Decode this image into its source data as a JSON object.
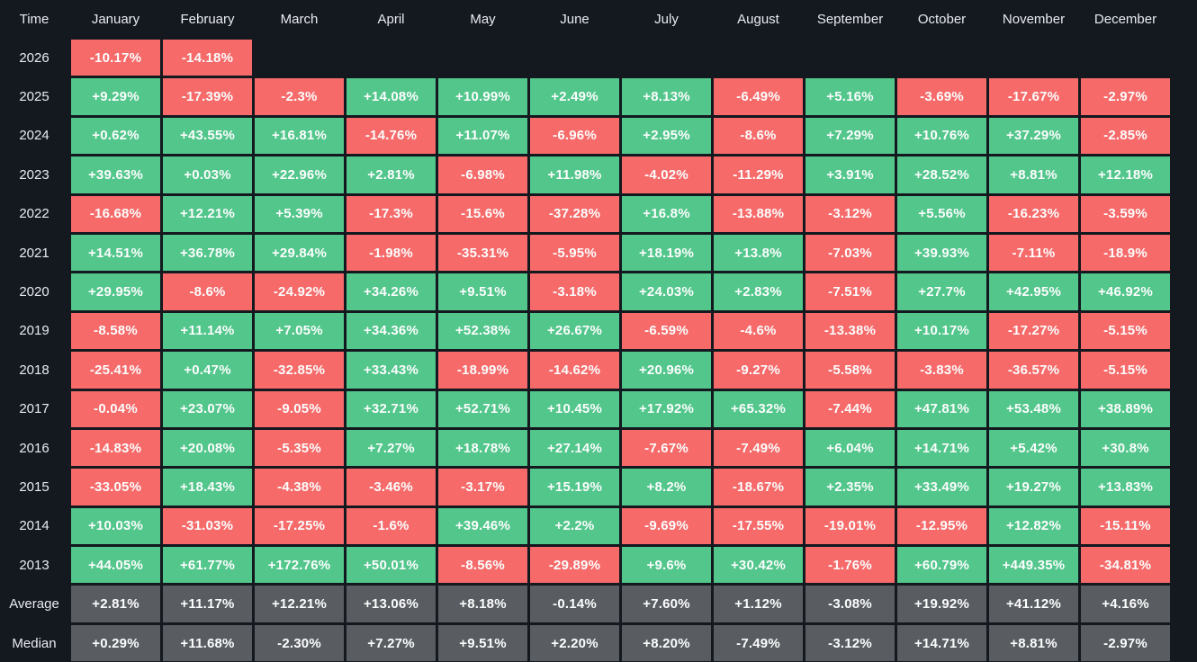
{
  "colors": {
    "background": "#14181f",
    "positive": "#52c68b",
    "negative": "#f66a6a",
    "summary": "#595d62",
    "cell_text": "#fcfdfd",
    "label_text": "#e9edf2"
  },
  "table": {
    "corner_label": "Time"
  },
  "chart_data": {
    "type": "heatmap",
    "title": "",
    "row_header": "Time",
    "columns": [
      "January",
      "February",
      "March",
      "April",
      "May",
      "June",
      "July",
      "August",
      "September",
      "October",
      "November",
      "December"
    ],
    "color_coding": {
      "positive": "green",
      "negative": "red",
      "summary_rows": "gray"
    },
    "legend_position": "none",
    "rows": [
      {
        "label": "2026",
        "kind": "year",
        "display": [
          "-10.17%",
          "-14.18%",
          "",
          "",
          "",
          "",
          "",
          "",
          "",
          "",
          "",
          ""
        ],
        "values": [
          -10.17,
          -14.18,
          null,
          null,
          null,
          null,
          null,
          null,
          null,
          null,
          null,
          null
        ]
      },
      {
        "label": "2025",
        "kind": "year",
        "display": [
          "+9.29%",
          "-17.39%",
          "-2.3%",
          "+14.08%",
          "+10.99%",
          "+2.49%",
          "+8.13%",
          "-6.49%",
          "+5.16%",
          "-3.69%",
          "-17.67%",
          "-2.97%"
        ],
        "values": [
          9.29,
          -17.39,
          -2.3,
          14.08,
          10.99,
          2.49,
          8.13,
          -6.49,
          5.16,
          -3.69,
          -17.67,
          -2.97
        ]
      },
      {
        "label": "2024",
        "kind": "year",
        "display": [
          "+0.62%",
          "+43.55%",
          "+16.81%",
          "-14.76%",
          "+11.07%",
          "-6.96%",
          "+2.95%",
          "-8.6%",
          "+7.29%",
          "+10.76%",
          "+37.29%",
          "-2.85%"
        ],
        "values": [
          0.62,
          43.55,
          16.81,
          -14.76,
          11.07,
          -6.96,
          2.95,
          -8.6,
          7.29,
          10.76,
          37.29,
          -2.85
        ]
      },
      {
        "label": "2023",
        "kind": "year",
        "display": [
          "+39.63%",
          "+0.03%",
          "+22.96%",
          "+2.81%",
          "-6.98%",
          "+11.98%",
          "-4.02%",
          "-11.29%",
          "+3.91%",
          "+28.52%",
          "+8.81%",
          "+12.18%"
        ],
        "values": [
          39.63,
          0.03,
          22.96,
          2.81,
          -6.98,
          11.98,
          -4.02,
          -11.29,
          3.91,
          28.52,
          8.81,
          12.18
        ]
      },
      {
        "label": "2022",
        "kind": "year",
        "display": [
          "-16.68%",
          "+12.21%",
          "+5.39%",
          "-17.3%",
          "-15.6%",
          "-37.28%",
          "+16.8%",
          "-13.88%",
          "-3.12%",
          "+5.56%",
          "-16.23%",
          "-3.59%"
        ],
        "values": [
          -16.68,
          12.21,
          5.39,
          -17.3,
          -15.6,
          -37.28,
          16.8,
          -13.88,
          -3.12,
          5.56,
          -16.23,
          -3.59
        ]
      },
      {
        "label": "2021",
        "kind": "year",
        "display": [
          "+14.51%",
          "+36.78%",
          "+29.84%",
          "-1.98%",
          "-35.31%",
          "-5.95%",
          "+18.19%",
          "+13.8%",
          "-7.03%",
          "+39.93%",
          "-7.11%",
          "-18.9%"
        ],
        "values": [
          14.51,
          36.78,
          29.84,
          -1.98,
          -35.31,
          -5.95,
          18.19,
          13.8,
          -7.03,
          39.93,
          -7.11,
          -18.9
        ]
      },
      {
        "label": "2020",
        "kind": "year",
        "display": [
          "+29.95%",
          "-8.6%",
          "-24.92%",
          "+34.26%",
          "+9.51%",
          "-3.18%",
          "+24.03%",
          "+2.83%",
          "-7.51%",
          "+27.7%",
          "+42.95%",
          "+46.92%"
        ],
        "values": [
          29.95,
          -8.6,
          -24.92,
          34.26,
          9.51,
          -3.18,
          24.03,
          2.83,
          -7.51,
          27.7,
          42.95,
          46.92
        ]
      },
      {
        "label": "2019",
        "kind": "year",
        "display": [
          "-8.58%",
          "+11.14%",
          "+7.05%",
          "+34.36%",
          "+52.38%",
          "+26.67%",
          "-6.59%",
          "-4.6%",
          "-13.38%",
          "+10.17%",
          "-17.27%",
          "-5.15%"
        ],
        "values": [
          -8.58,
          11.14,
          7.05,
          34.36,
          52.38,
          26.67,
          -6.59,
          -4.6,
          -13.38,
          10.17,
          -17.27,
          -5.15
        ]
      },
      {
        "label": "2018",
        "kind": "year",
        "display": [
          "-25.41%",
          "+0.47%",
          "-32.85%",
          "+33.43%",
          "-18.99%",
          "-14.62%",
          "+20.96%",
          "-9.27%",
          "-5.58%",
          "-3.83%",
          "-36.57%",
          "-5.15%"
        ],
        "values": [
          -25.41,
          0.47,
          -32.85,
          33.43,
          -18.99,
          -14.62,
          20.96,
          -9.27,
          -5.58,
          -3.83,
          -36.57,
          -5.15
        ]
      },
      {
        "label": "2017",
        "kind": "year",
        "display": [
          "-0.04%",
          "+23.07%",
          "-9.05%",
          "+32.71%",
          "+52.71%",
          "+10.45%",
          "+17.92%",
          "+65.32%",
          "-7.44%",
          "+47.81%",
          "+53.48%",
          "+38.89%"
        ],
        "values": [
          -0.04,
          23.07,
          -9.05,
          32.71,
          52.71,
          10.45,
          17.92,
          65.32,
          -7.44,
          47.81,
          53.48,
          38.89
        ]
      },
      {
        "label": "2016",
        "kind": "year",
        "display": [
          "-14.83%",
          "+20.08%",
          "-5.35%",
          "+7.27%",
          "+18.78%",
          "+27.14%",
          "-7.67%",
          "-7.49%",
          "+6.04%",
          "+14.71%",
          "+5.42%",
          "+30.8%"
        ],
        "values": [
          -14.83,
          20.08,
          -5.35,
          7.27,
          18.78,
          27.14,
          -7.67,
          -7.49,
          6.04,
          14.71,
          5.42,
          30.8
        ]
      },
      {
        "label": "2015",
        "kind": "year",
        "display": [
          "-33.05%",
          "+18.43%",
          "-4.38%",
          "-3.46%",
          "-3.17%",
          "+15.19%",
          "+8.2%",
          "-18.67%",
          "+2.35%",
          "+33.49%",
          "+19.27%",
          "+13.83%"
        ],
        "values": [
          -33.05,
          18.43,
          -4.38,
          -3.46,
          -3.17,
          15.19,
          8.2,
          -18.67,
          2.35,
          33.49,
          19.27,
          13.83
        ]
      },
      {
        "label": "2014",
        "kind": "year",
        "display": [
          "+10.03%",
          "-31.03%",
          "-17.25%",
          "-1.6%",
          "+39.46%",
          "+2.2%",
          "-9.69%",
          "-17.55%",
          "-19.01%",
          "-12.95%",
          "+12.82%",
          "-15.11%"
        ],
        "values": [
          10.03,
          -31.03,
          -17.25,
          -1.6,
          39.46,
          2.2,
          -9.69,
          -17.55,
          -19.01,
          -12.95,
          12.82,
          -15.11
        ]
      },
      {
        "label": "2013",
        "kind": "year",
        "display": [
          "+44.05%",
          "+61.77%",
          "+172.76%",
          "+50.01%",
          "-8.56%",
          "-29.89%",
          "+9.6%",
          "+30.42%",
          "-1.76%",
          "+60.79%",
          "+449.35%",
          "-34.81%"
        ],
        "values": [
          44.05,
          61.77,
          172.76,
          50.01,
          -8.56,
          -29.89,
          9.6,
          30.42,
          -1.76,
          60.79,
          449.35,
          -34.81
        ]
      },
      {
        "label": "Average",
        "kind": "summary",
        "display": [
          "+2.81%",
          "+11.17%",
          "+12.21%",
          "+13.06%",
          "+8.18%",
          "-0.14%",
          "+7.60%",
          "+1.12%",
          "-3.08%",
          "+19.92%",
          "+41.12%",
          "+4.16%"
        ],
        "values": [
          2.81,
          11.17,
          12.21,
          13.06,
          8.18,
          -0.14,
          7.6,
          1.12,
          -3.08,
          19.92,
          41.12,
          4.16
        ]
      },
      {
        "label": "Median",
        "kind": "summary",
        "display": [
          "+0.29%",
          "+11.68%",
          "-2.30%",
          "+7.27%",
          "+9.51%",
          "+2.20%",
          "+8.20%",
          "-7.49%",
          "-3.12%",
          "+14.71%",
          "+8.81%",
          "-2.97%"
        ],
        "values": [
          0.29,
          11.68,
          -2.3,
          7.27,
          9.51,
          2.2,
          8.2,
          -7.49,
          -3.12,
          14.71,
          8.81,
          -2.97
        ]
      }
    ]
  }
}
